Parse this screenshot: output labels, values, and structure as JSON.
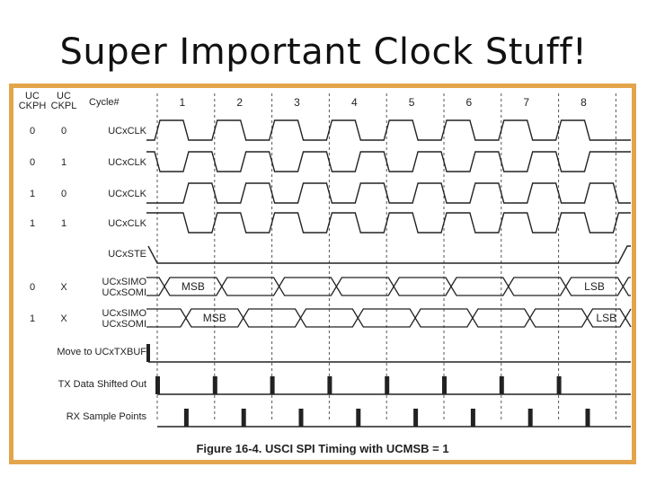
{
  "slide": {
    "title": "Super Important Clock Stuff!"
  },
  "figure": {
    "caption": "Figure 16-4. USCI SPI Timing with UCMSB = 1",
    "frame_color": "#e3a54b",
    "header": {
      "col1_line1": "UC",
      "col1_line2": "CKPH",
      "col2_line1": "UC",
      "col2_line2": "CKPL",
      "cycle_label": "Cycle#"
    },
    "cycles": [
      "1",
      "2",
      "3",
      "4",
      "5",
      "6",
      "7",
      "8"
    ],
    "clock_rows": [
      {
        "ckph": "0",
        "ckpl": "0",
        "label": "UCxCLK",
        "idle": "low",
        "phase": 0
      },
      {
        "ckph": "0",
        "ckpl": "1",
        "label": "UCxCLK",
        "idle": "high",
        "phase": 0
      },
      {
        "ckph": "1",
        "ckpl": "0",
        "label": "UCxCLK",
        "idle": "low",
        "phase": 1
      },
      {
        "ckph": "1",
        "ckpl": "1",
        "label": "UCxCLK",
        "idle": "high",
        "phase": 1
      }
    ],
    "ste_row": {
      "label": "UCxSTE"
    },
    "data_rows": [
      {
        "ckph": "0",
        "ckpl": "X",
        "label_line1": "UCxSIMO",
        "label_line2": "UCxSOMI",
        "first": "MSB",
        "last": "LSB",
        "phase": 0
      },
      {
        "ckph": "1",
        "ckpl": "X",
        "label_line1": "UCxSIMO",
        "label_line2": "UCxSOMI",
        "first": "MSB",
        "last": "LSB",
        "phase": 1
      }
    ],
    "pulse_rows": [
      {
        "label": "Move to UCxTXBUF",
        "kind": "txbuf"
      },
      {
        "label": "TX Data Shifted Out",
        "kind": "tx"
      },
      {
        "label": "RX Sample Points",
        "kind": "rx"
      }
    ]
  }
}
